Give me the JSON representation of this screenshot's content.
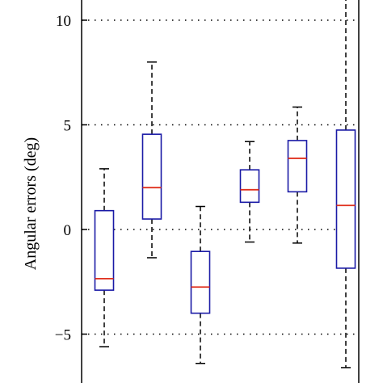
{
  "chart_data": {
    "type": "box",
    "title": "",
    "xlabel": "",
    "ylabel": "Angular errors (deg)",
    "ylim": [
      -7.0,
      11.0
    ],
    "yticks": [
      10,
      5,
      0,
      -5
    ],
    "ytick_labels": [
      "10",
      "5",
      "0",
      "−5"
    ],
    "grid": "horizontal-dotted",
    "box_color": "#1a1aa6",
    "median_color": "#e0301e",
    "whisker_color": "#000000",
    "boxes": [
      {
        "q1": -2.9,
        "median": -2.35,
        "q3": 0.9,
        "whisker_low": -5.6,
        "whisker_high": 2.9
      },
      {
        "q1": 0.5,
        "median": 2.0,
        "q3": 4.55,
        "whisker_low": -1.35,
        "whisker_high": 8.0
      },
      {
        "q1": -4.0,
        "median": -2.75,
        "q3": -1.05,
        "whisker_low": -6.4,
        "whisker_high": 1.1
      },
      {
        "q1": 1.3,
        "median": 1.9,
        "q3": 2.85,
        "whisker_low": -0.6,
        "whisker_high": 4.2
      },
      {
        "q1": 1.8,
        "median": 3.4,
        "q3": 4.25,
        "whisker_low": -0.65,
        "whisker_high": 5.85
      },
      {
        "q1": -1.85,
        "median": 1.15,
        "q3": 4.75,
        "whisker_low": -6.6,
        "whisker_high": 11.0
      }
    ]
  }
}
